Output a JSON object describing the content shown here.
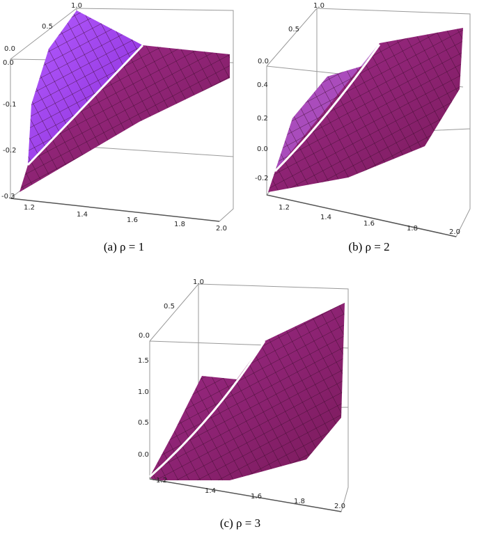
{
  "panels": [
    {
      "caption": "(a) ρ = 1",
      "depth_ticks": [
        "1.0",
        "0.5",
        "0.0"
      ],
      "vertical_ticks": [
        "0.0",
        "-0.1",
        "-0.2",
        "-0.3"
      ],
      "horizontal_ticks": [
        "1.2",
        "1.4",
        "1.6",
        "1.8",
        "2.0"
      ]
    },
    {
      "caption": "(b) ρ = 2",
      "depth_ticks": [
        "1.0",
        "0.5",
        "0.0"
      ],
      "vertical_ticks": [
        "0.4",
        "0.2",
        "0.0",
        "-0.2"
      ],
      "horizontal_ticks": [
        "1.2",
        "1.4",
        "1.6",
        "1.8",
        "2.0"
      ]
    },
    {
      "caption": "(c) ρ = 3",
      "depth_ticks": [
        "1.0",
        "0.5",
        "0.0"
      ],
      "vertical_ticks": [
        "1.5",
        "1.0",
        "0.5",
        "0.0"
      ],
      "horizontal_ticks": [
        "1.2",
        "1.4",
        "1.6",
        "1.8",
        "2.0"
      ]
    }
  ]
}
